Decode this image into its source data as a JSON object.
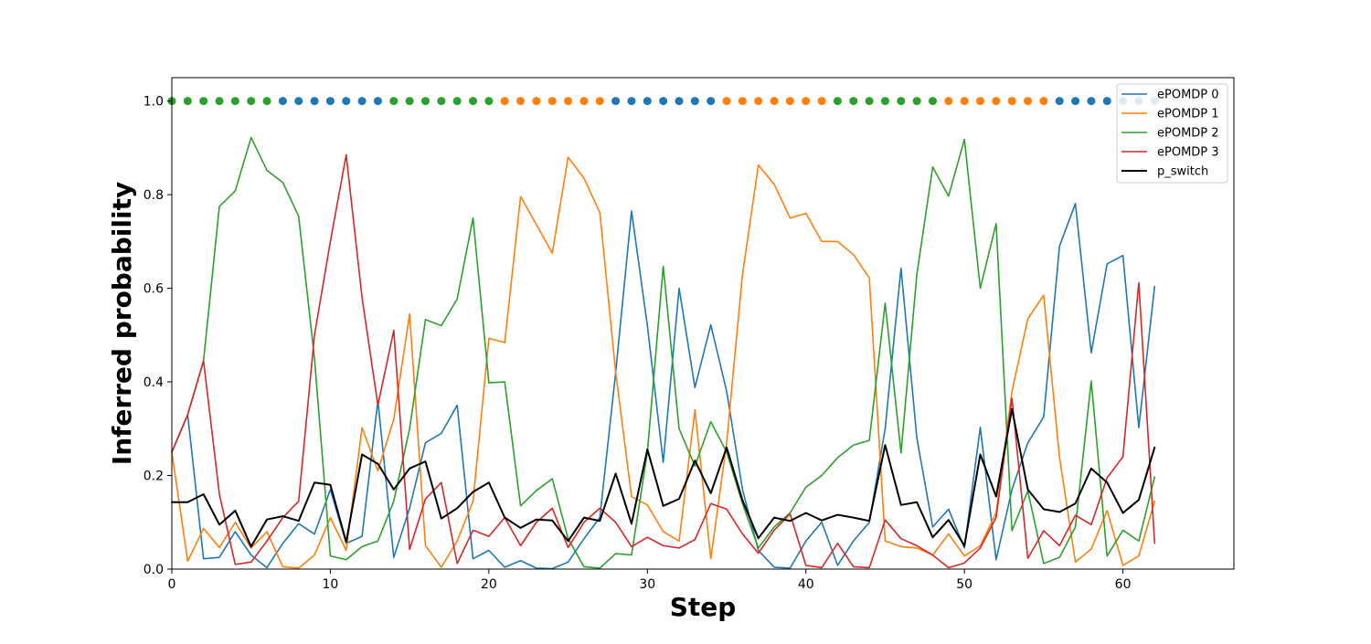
{
  "chart_data": {
    "type": "line",
    "xlabel": "Step",
    "ylabel": "Inferred probability",
    "xlim": [
      0,
      67
    ],
    "ylim": [
      0,
      1.05
    ],
    "xticks": [
      0,
      10,
      20,
      30,
      40,
      50,
      60
    ],
    "yticks": [
      0.0,
      0.2,
      0.4,
      0.6,
      0.8,
      1.0
    ],
    "xtick_labels": [
      "0",
      "10",
      "20",
      "30",
      "40",
      "50",
      "60"
    ],
    "ytick_labels": [
      "0.0",
      "0.2",
      "0.4",
      "0.6",
      "0.8",
      "1.0"
    ],
    "legend_position": "top-right",
    "x": [
      0,
      1,
      2,
      3,
      4,
      5,
      6,
      7,
      8,
      9,
      10,
      11,
      12,
      13,
      14,
      15,
      16,
      17,
      18,
      19,
      20,
      21,
      22,
      23,
      24,
      25,
      26,
      27,
      28,
      29,
      30,
      31,
      32,
      33,
      34,
      35,
      36,
      37,
      38,
      39,
      40,
      41,
      42,
      43,
      44,
      45,
      46,
      47,
      48,
      49,
      50,
      51,
      52,
      53,
      54,
      55,
      56,
      57,
      58,
      59,
      60,
      61,
      62
    ],
    "series": [
      {
        "name": "ePOMDP 0",
        "color": "#1f77b4",
        "values": [
          0.25,
          0.33,
          0.022,
          0.025,
          0.08,
          0.03,
          0.003,
          0.055,
          0.097,
          0.075,
          0.17,
          0.055,
          0.07,
          0.36,
          0.025,
          0.13,
          0.27,
          0.29,
          0.35,
          0.022,
          0.04,
          0.004,
          0.018,
          0.002,
          0.001,
          0.015,
          0.065,
          0.11,
          0.42,
          0.765,
          0.52,
          0.228,
          0.6,
          0.388,
          0.522,
          0.38,
          0.17,
          0.04,
          0.004,
          0.002,
          0.06,
          0.1,
          0.008,
          0.06,
          0.1,
          0.3,
          0.643,
          0.28,
          0.09,
          0.128,
          0.045,
          0.303,
          0.02,
          0.17,
          0.27,
          0.325,
          0.69,
          0.781,
          0.462,
          0.652,
          0.67,
          0.302,
          0.604
        ]
      },
      {
        "name": "ePOMDP 1",
        "color": "#ff7f0e",
        "values": [
          0.25,
          0.017,
          0.087,
          0.046,
          0.1,
          0.045,
          0.08,
          0.005,
          0.002,
          0.03,
          0.11,
          0.04,
          0.302,
          0.21,
          0.32,
          0.545,
          0.05,
          0.004,
          0.06,
          0.145,
          0.493,
          0.484,
          0.796,
          0.736,
          0.675,
          0.88,
          0.835,
          0.762,
          0.42,
          0.155,
          0.137,
          0.08,
          0.06,
          0.34,
          0.022,
          0.27,
          0.63,
          0.863,
          0.822,
          0.75,
          0.76,
          0.7,
          0.7,
          0.672,
          0.622,
          0.06,
          0.048,
          0.045,
          0.03,
          0.075,
          0.028,
          0.05,
          0.12,
          0.38,
          0.535,
          0.585,
          0.238,
          0.015,
          0.043,
          0.125,
          0.008,
          0.028,
          0.145
        ]
      },
      {
        "name": "ePOMDP 2",
        "color": "#2ca02c",
        "values": [
          0.25,
          0.33,
          0.445,
          0.775,
          0.808,
          0.922,
          0.852,
          0.826,
          0.754,
          0.45,
          0.028,
          0.02,
          0.048,
          0.06,
          0.145,
          0.3,
          0.533,
          0.52,
          0.577,
          0.75,
          0.398,
          0.4,
          0.135,
          0.168,
          0.193,
          0.065,
          0.005,
          0.002,
          0.033,
          0.03,
          0.25,
          0.647,
          0.3,
          0.22,
          0.315,
          0.25,
          0.14,
          0.045,
          0.09,
          0.12,
          0.175,
          0.2,
          0.238,
          0.265,
          0.275,
          0.568,
          0.248,
          0.63,
          0.859,
          0.797,
          0.918,
          0.6,
          0.738,
          0.082,
          0.167,
          0.012,
          0.025,
          0.09,
          0.402,
          0.028,
          0.083,
          0.06,
          0.197
        ]
      },
      {
        "name": "ePOMDP 3",
        "color": "#d62728",
        "values": [
          0.25,
          0.33,
          0.445,
          0.16,
          0.01,
          0.015,
          0.06,
          0.11,
          0.145,
          0.5,
          0.7,
          0.885,
          0.58,
          0.35,
          0.51,
          0.042,
          0.15,
          0.185,
          0.012,
          0.083,
          0.07,
          0.11,
          0.05,
          0.1,
          0.13,
          0.046,
          0.1,
          0.13,
          0.1,
          0.048,
          0.068,
          0.05,
          0.045,
          0.063,
          0.14,
          0.128,
          0.075,
          0.034,
          0.083,
          0.118,
          0.008,
          0.003,
          0.055,
          0.005,
          0.003,
          0.105,
          0.065,
          0.05,
          0.03,
          0.003,
          0.013,
          0.045,
          0.11,
          0.365,
          0.023,
          0.082,
          0.05,
          0.115,
          0.095,
          0.195,
          0.24,
          0.612,
          0.055
        ]
      },
      {
        "name": "p_switch",
        "color": "#000000",
        "values": [
          0.143,
          0.143,
          0.16,
          0.095,
          0.125,
          0.048,
          0.106,
          0.113,
          0.103,
          0.185,
          0.18,
          0.058,
          0.245,
          0.225,
          0.17,
          0.215,
          0.23,
          0.108,
          0.13,
          0.165,
          0.185,
          0.11,
          0.088,
          0.106,
          0.104,
          0.06,
          0.11,
          0.103,
          0.204,
          0.097,
          0.256,
          0.135,
          0.15,
          0.232,
          0.162,
          0.26,
          0.147,
          0.066,
          0.11,
          0.103,
          0.12,
          0.104,
          0.116,
          0.11,
          0.103,
          0.265,
          0.137,
          0.143,
          0.068,
          0.105,
          0.05,
          0.245,
          0.155,
          0.342,
          0.17,
          0.128,
          0.122,
          0.14,
          0.215,
          0.185,
          0.12,
          0.148,
          0.26
        ]
      }
    ],
    "markers": {
      "y": 1.0,
      "x": [
        0,
        1,
        2,
        3,
        4,
        5,
        6,
        7,
        8,
        9,
        10,
        11,
        12,
        13,
        14,
        15,
        16,
        17,
        18,
        19,
        20,
        21,
        22,
        23,
        24,
        25,
        26,
        27,
        28,
        29,
        30,
        31,
        32,
        33,
        34,
        35,
        36,
        37,
        38,
        39,
        40,
        41,
        42,
        43,
        44,
        45,
        46,
        47,
        48,
        49,
        50,
        51,
        52,
        53,
        54,
        55,
        56,
        57,
        58,
        59,
        60,
        61,
        62
      ],
      "colors": [
        "#2ca02c",
        "#2ca02c",
        "#2ca02c",
        "#2ca02c",
        "#2ca02c",
        "#2ca02c",
        "#2ca02c",
        "#1f77b4",
        "#1f77b4",
        "#1f77b4",
        "#1f77b4",
        "#1f77b4",
        "#1f77b4",
        "#1f77b4",
        "#2ca02c",
        "#2ca02c",
        "#2ca02c",
        "#2ca02c",
        "#2ca02c",
        "#2ca02c",
        "#2ca02c",
        "#ff7f0e",
        "#ff7f0e",
        "#ff7f0e",
        "#ff7f0e",
        "#ff7f0e",
        "#ff7f0e",
        "#ff7f0e",
        "#1f77b4",
        "#1f77b4",
        "#1f77b4",
        "#1f77b4",
        "#1f77b4",
        "#1f77b4",
        "#1f77b4",
        "#ff7f0e",
        "#ff7f0e",
        "#ff7f0e",
        "#ff7f0e",
        "#ff7f0e",
        "#ff7f0e",
        "#ff7f0e",
        "#2ca02c",
        "#2ca02c",
        "#2ca02c",
        "#2ca02c",
        "#2ca02c",
        "#2ca02c",
        "#2ca02c",
        "#ff7f0e",
        "#ff7f0e",
        "#ff7f0e",
        "#ff7f0e",
        "#ff7f0e",
        "#ff7f0e",
        "#ff7f0e",
        "#1f77b4",
        "#1f77b4",
        "#1f77b4",
        "#1f77b4",
        "#1f77b4",
        "#1f77b4",
        "#1f77b4"
      ]
    }
  }
}
